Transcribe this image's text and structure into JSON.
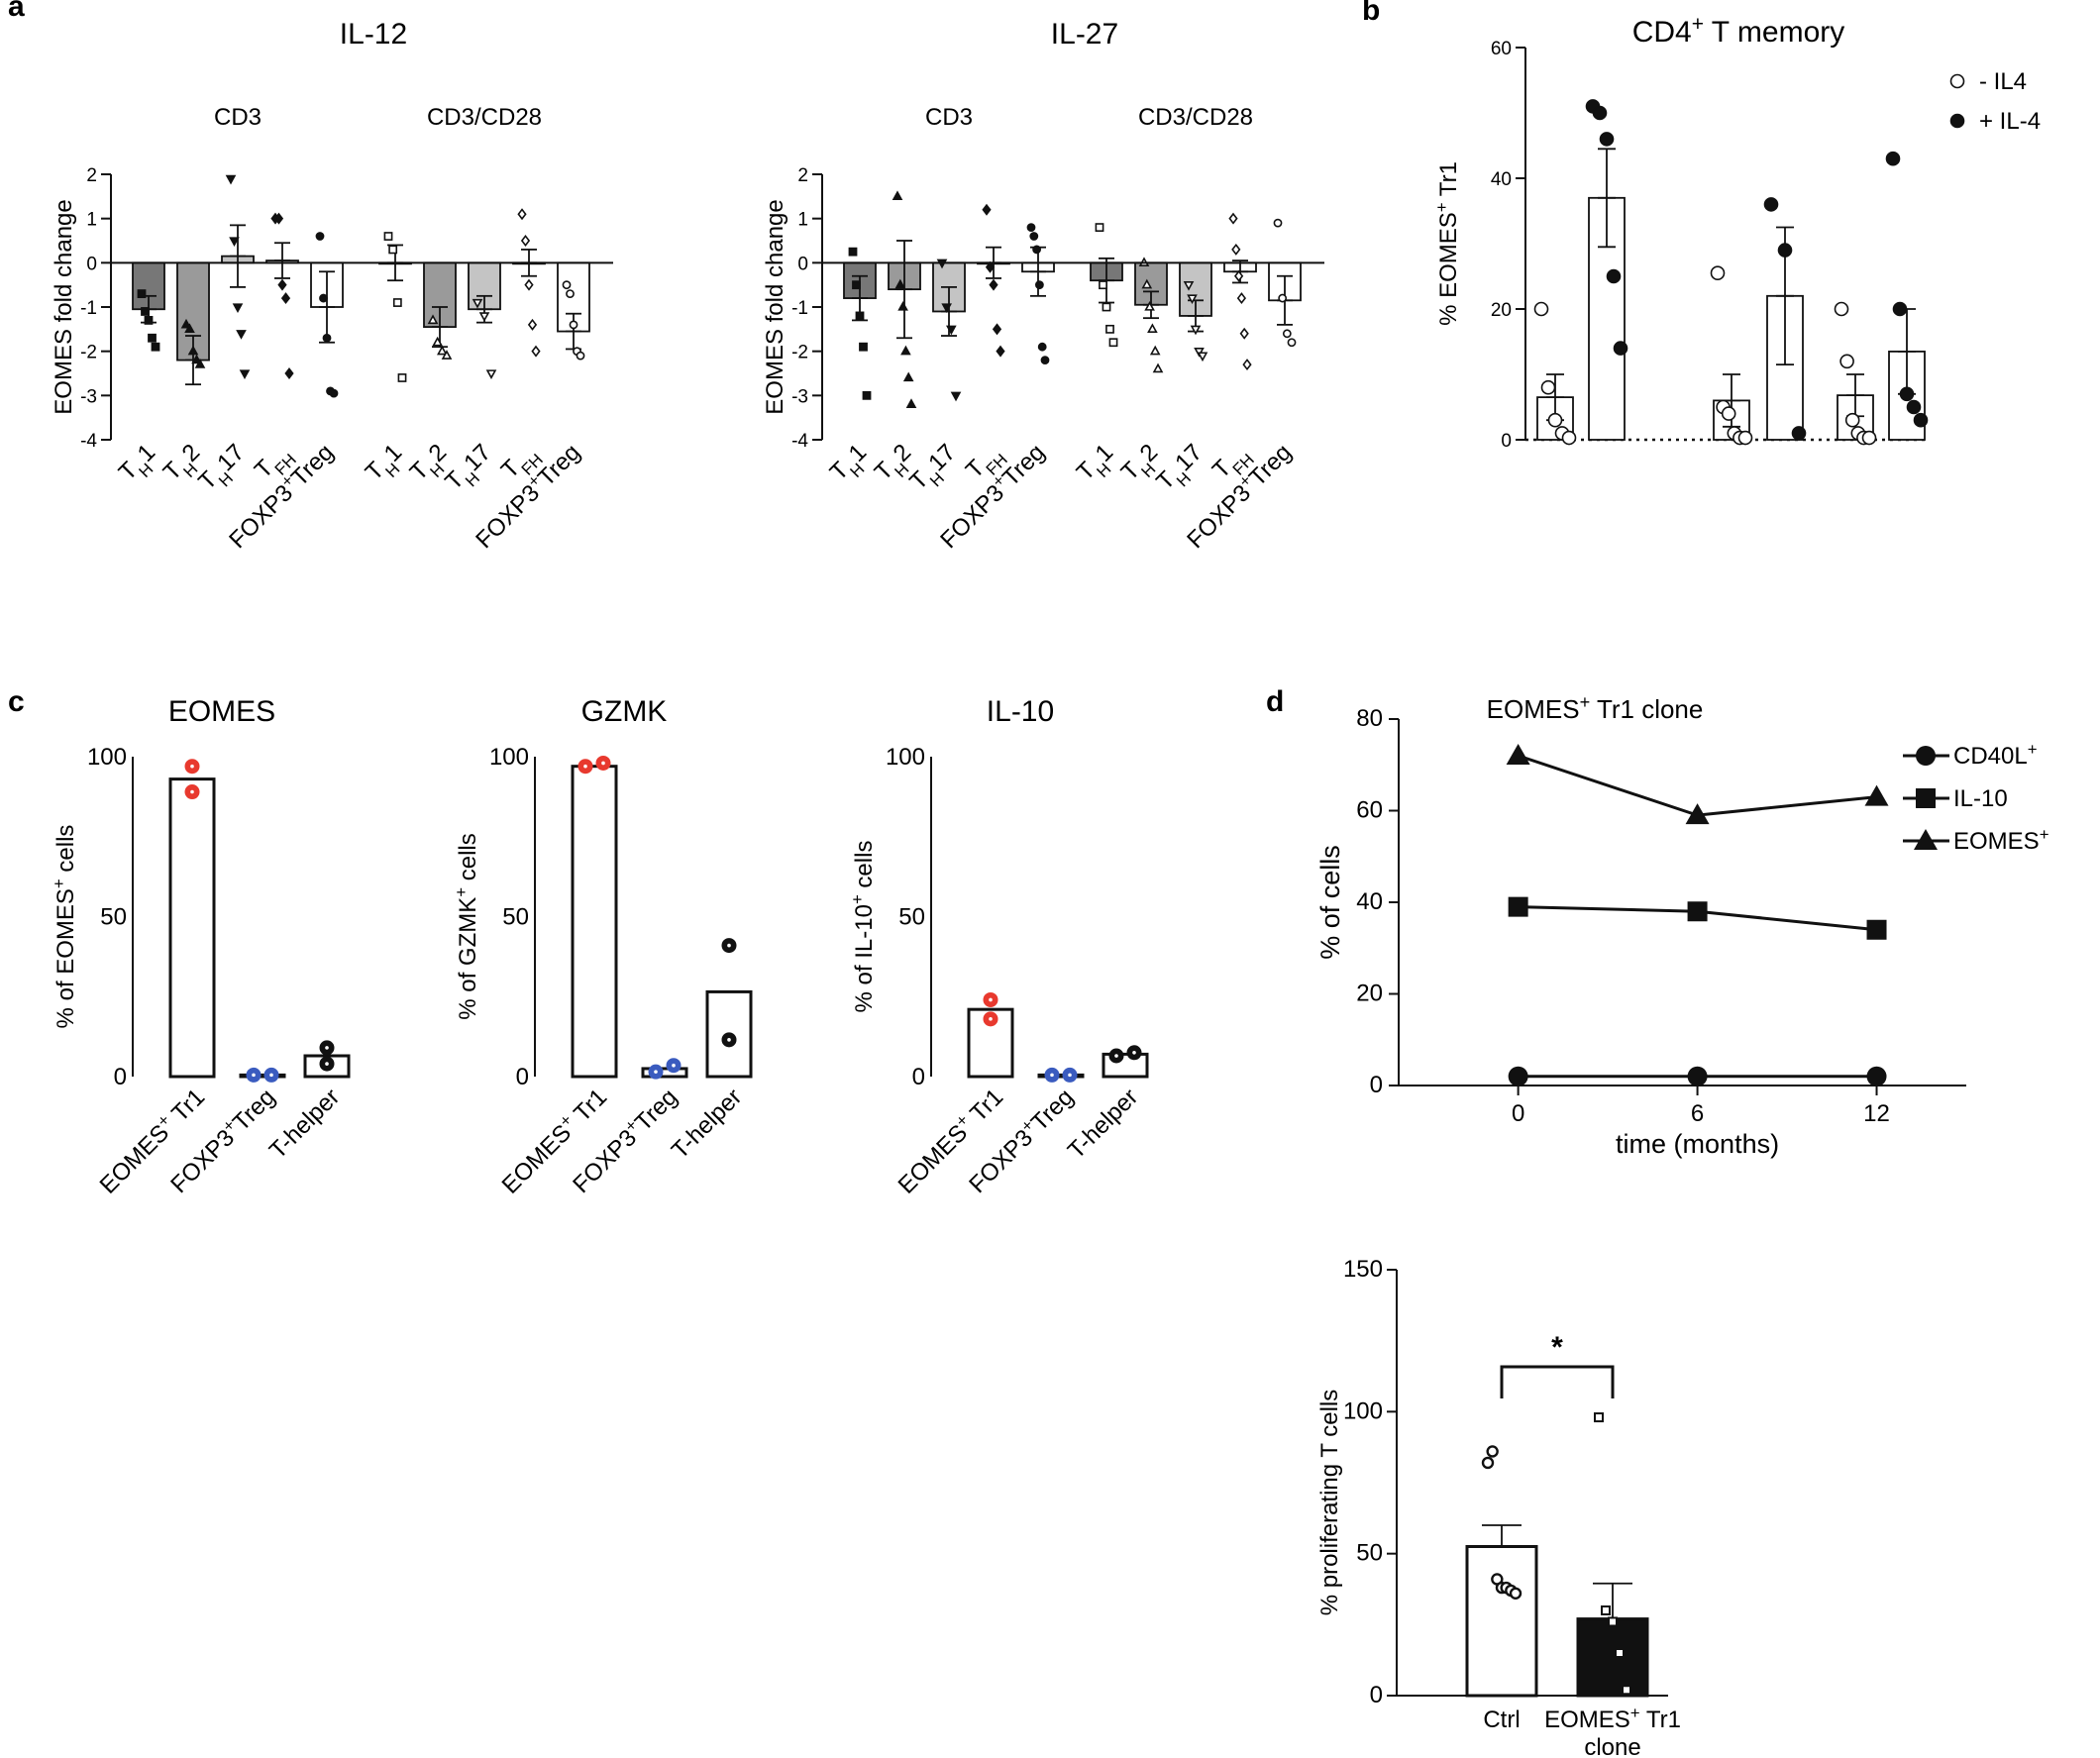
{
  "panel_labels": {
    "a": "a",
    "b": "b",
    "c": "c",
    "d": "d"
  },
  "colors": {
    "dark_grey": "#777777",
    "mid_grey": "#9a9a9a",
    "light_grey": "#c4c4c4",
    "red": "#e8392e",
    "blue": "#3a5bbf",
    "black": "#111111"
  },
  "chart_data": [
    {
      "id": "a_il12",
      "type": "bar",
      "title": "IL-12",
      "ylabel": "EOMES fold change",
      "ylim": [
        -4,
        2
      ],
      "yticks": [
        -4,
        -3,
        -2,
        -1,
        0,
        1,
        2
      ],
      "groups": [
        "CD3",
        "CD3/CD28"
      ],
      "categories": [
        "TH1",
        "TH2",
        "TH17",
        "TFH",
        "FOXP3+Treg"
      ],
      "category_labels": [
        {
          "main": "T",
          "sub": "H",
          "rest": "1"
        },
        {
          "main": "T",
          "sub": "H",
          "rest": "2"
        },
        {
          "main": "T",
          "sub": "H",
          "rest": "17"
        },
        {
          "main": "T",
          "sub": "FH",
          "rest": ""
        },
        {
          "main": "FOXP3",
          "sup": "+",
          "rest": "Treg"
        }
      ],
      "series": [
        {
          "name": "CD3",
          "values": [
            -1.05,
            -2.2,
            0.15,
            0.05,
            -1.0
          ],
          "sem": [
            0.3,
            0.55,
            0.7,
            0.4,
            0.8
          ],
          "points": [
            [
              -0.7,
              -1.1,
              -1.3,
              -1.7,
              -1.9
            ],
            [
              -1.4,
              -1.5,
              -2.0,
              -2.2,
              -2.3
            ],
            [
              1.9,
              0.5,
              -1.0,
              -1.6,
              -2.5
            ],
            [
              1.0,
              1.0,
              -0.5,
              -0.8,
              -2.5
            ],
            [
              0.6,
              -0.8,
              -1.7,
              -2.9,
              -2.95
            ]
          ]
        },
        {
          "name": "CD3/CD28",
          "values": [
            0.0,
            -1.45,
            -1.05,
            0.0,
            -1.55
          ],
          "sem": [
            0.4,
            0.45,
            0.3,
            0.3,
            0.4
          ],
          "points": [
            [
              0.6,
              0.3,
              -0.9,
              -2.6
            ],
            [
              -1.3,
              -1.8,
              -2.0,
              -2.1
            ],
            [
              -0.9,
              -1.2,
              -2.5
            ],
            [
              1.1,
              0.5,
              -0.5,
              -1.4,
              -2.0
            ],
            [
              -0.5,
              -0.7,
              -1.4,
              -2.0,
              -2.1
            ]
          ]
        }
      ]
    },
    {
      "id": "a_il27",
      "type": "bar",
      "title": "IL-27",
      "ylabel": "EOMES fold change",
      "ylim": [
        -4,
        2
      ],
      "yticks": [
        -4,
        -3,
        -2,
        -1,
        0,
        1,
        2
      ],
      "groups": [
        "CD3",
        "CD3/CD28"
      ],
      "categories": [
        "TH1",
        "TH2",
        "TH17",
        "TFH",
        "FOXP3+Treg"
      ],
      "category_labels": [
        {
          "main": "T",
          "sub": "H",
          "rest": "1"
        },
        {
          "main": "T",
          "sub": "H",
          "rest": "2"
        },
        {
          "main": "T",
          "sub": "H",
          "rest": "17"
        },
        {
          "main": "T",
          "sub": "FH",
          "rest": ""
        },
        {
          "main": "FOXP3",
          "sup": "+",
          "rest": "Treg"
        }
      ],
      "series": [
        {
          "name": "CD3",
          "values": [
            -0.8,
            -0.6,
            -1.1,
            0.0,
            -0.2
          ],
          "sem": [
            0.5,
            1.1,
            0.55,
            0.35,
            0.55
          ],
          "points": [
            [
              0.25,
              -0.5,
              -1.2,
              -1.9,
              -3.0
            ],
            [
              1.5,
              -0.5,
              -1.0,
              -2.0,
              -2.6,
              -3.2
            ],
            [
              0.0,
              -1.0,
              -1.5,
              -3.0
            ],
            [
              1.2,
              -0.1,
              -0.5,
              -1.5,
              -2.0
            ],
            [
              0.8,
              0.6,
              0.3,
              -0.5,
              -1.9,
              -2.2
            ]
          ]
        },
        {
          "name": "CD3/CD28",
          "values": [
            -0.4,
            -0.95,
            -1.2,
            -0.2,
            -0.85
          ],
          "sem": [
            0.5,
            0.3,
            0.35,
            0.25,
            0.55
          ],
          "points": [
            [
              0.8,
              -0.5,
              -1.0,
              -1.5,
              -1.8
            ],
            [
              0.0,
              -0.5,
              -1.0,
              -1.5,
              -2.0,
              -2.4
            ],
            [
              -0.5,
              -0.8,
              -1.5,
              -2.0,
              -2.1
            ],
            [
              1.0,
              0.3,
              -0.3,
              -0.8,
              -1.6,
              -2.3
            ],
            [
              0.9,
              -0.8,
              -1.6,
              -1.8
            ]
          ]
        }
      ]
    },
    {
      "id": "b",
      "type": "bar",
      "title": "CD4",
      "title_sup": "+",
      "title_rest": " T memory",
      "ylabel": "% EOMES",
      "ylabel_sup": "+",
      "ylabel_rest": " Tr1",
      "ylim": [
        0,
        60
      ],
      "yticks": [
        0,
        20,
        40,
        60
      ],
      "legend": [
        {
          "marker": "open",
          "label": "-  IL4"
        },
        {
          "marker": "filled",
          "label": "+ IL-4"
        }
      ],
      "bars": [
        {
          "condition": "- IL4",
          "value": 6.5,
          "sem": 3.5,
          "points": [
            20,
            8,
            3,
            1,
            0.3
          ]
        },
        {
          "condition": "+ IL-4",
          "value": 37,
          "sem": 7.5,
          "points": [
            51,
            50,
            46,
            25,
            14
          ]
        },
        {
          "condition": "- IL4",
          "value": 6,
          "sem": 4,
          "points": [
            25.5,
            5,
            4,
            1,
            0.3,
            0.3
          ]
        },
        {
          "condition": "+ IL-4",
          "value": 22,
          "sem": 10.5,
          "points": [
            36,
            29,
            1
          ]
        },
        {
          "condition": "- IL4",
          "value": 6.8,
          "sem": 3.2,
          "points": [
            20,
            12,
            3,
            1,
            0.3,
            0.3
          ]
        },
        {
          "condition": "+ IL-4",
          "value": 13.5,
          "sem": 6.5,
          "points": [
            43,
            20,
            7,
            5,
            3
          ]
        }
      ]
    },
    {
      "id": "c_eomes",
      "type": "bar",
      "title": "EOMES",
      "ylabel": "% of EOMES",
      "ylabel_sup": "+",
      "ylabel_rest": " cells",
      "ylim": [
        0,
        100
      ],
      "yticks": [
        0,
        50,
        100
      ],
      "categories": [
        "EOMES+ Tr1",
        "FOXP3+Treg",
        "T-helper"
      ],
      "category_labels": [
        {
          "main": "EOMES",
          "sup": "+",
          "rest": " Tr1"
        },
        {
          "main": "FOXP3",
          "sup": "+",
          "rest": "Treg"
        },
        {
          "main": "T-helper",
          "rest": ""
        }
      ],
      "values": [
        93,
        0.5,
        6.5
      ],
      "points": [
        [
          97,
          89
        ],
        [
          0.5,
          0.5
        ],
        [
          9,
          4
        ]
      ],
      "dot_colors": [
        "red",
        "blue",
        "black"
      ]
    },
    {
      "id": "c_gzmk",
      "type": "bar",
      "title": "GZMK",
      "ylabel": "% of GZMK",
      "ylabel_sup": "+",
      "ylabel_rest": " cells",
      "ylim": [
        0,
        100
      ],
      "yticks": [
        0,
        50,
        100
      ],
      "categories": [
        "EOMES+ Tr1",
        "FOXP3+Treg",
        "T-helper"
      ],
      "category_labels": [
        {
          "main": "EOMES",
          "sup": "+",
          "rest": " Tr1"
        },
        {
          "main": "FOXP3",
          "sup": "+",
          "rest": "Treg"
        },
        {
          "main": "T-helper",
          "rest": ""
        }
      ],
      "values": [
        97,
        2.5,
        26.5
      ],
      "points": [
        [
          97,
          98
        ],
        [
          1.5,
          3.5
        ],
        [
          41,
          11.5
        ]
      ],
      "dot_colors": [
        "red",
        "blue",
        "black"
      ]
    },
    {
      "id": "c_il10",
      "type": "bar",
      "title": "IL-10",
      "ylabel": "% of IL-10",
      "ylabel_sup": "+",
      "ylabel_rest": " cells",
      "ylim": [
        0,
        100
      ],
      "yticks": [
        0,
        50,
        100
      ],
      "categories": [
        "EOMES+ Tr1",
        "FOXP3+Treg",
        "T-helper"
      ],
      "category_labels": [
        {
          "main": "EOMES",
          "sup": "+",
          "rest": " Tr1"
        },
        {
          "main": "FOXP3",
          "sup": "+",
          "rest": "Treg"
        },
        {
          "main": "T-helper",
          "rest": ""
        }
      ],
      "values": [
        21,
        0.5,
        7
      ],
      "points": [
        [
          24,
          18
        ],
        [
          0.5,
          0.5
        ],
        [
          6.5,
          7.5
        ]
      ],
      "dot_colors": [
        "red",
        "blue",
        "black"
      ]
    },
    {
      "id": "d_line",
      "type": "line",
      "title": "EOMES",
      "title_sup": "+",
      "title_rest": " Tr1 clone",
      "xlabel": "time (months)",
      "ylabel": "% of cells",
      "x": [
        0,
        6,
        12
      ],
      "xlim": [
        -4,
        15
      ],
      "ylim": [
        0,
        80
      ],
      "yticks": [
        0,
        20,
        40,
        60,
        80
      ],
      "xticks": [
        0,
        6,
        12
      ],
      "series": [
        {
          "name": "CD40L",
          "name_sup": "+",
          "marker": "circle",
          "values": [
            2,
            2,
            2
          ]
        },
        {
          "name": "IL-10",
          "name_sup": "",
          "marker": "square",
          "values": [
            39,
            38,
            34
          ]
        },
        {
          "name": "EOMES",
          "name_sup": "+",
          "marker": "triangle",
          "values": [
            72,
            59,
            63
          ]
        }
      ]
    },
    {
      "id": "d_bar",
      "type": "bar",
      "ylabel": "% proliferating  T cells",
      "ylim": [
        0,
        150
      ],
      "yticks": [
        0,
        50,
        100,
        150
      ],
      "categories": [
        "Ctrl",
        "EOMES+ Tr1 clone"
      ],
      "category_labels": [
        {
          "main": "Ctrl",
          "rest": ""
        },
        {
          "main": "EOMES",
          "sup": "+",
          "rest": " Tr1",
          "line2": "clone"
        }
      ],
      "values": [
        52.5,
        27
      ],
      "sem": [
        7.5,
        12.5
      ],
      "points": [
        [
          82,
          86,
          41,
          38,
          38,
          37,
          36
        ],
        [
          98,
          30,
          26,
          15,
          2
        ]
      ],
      "significance": "*"
    }
  ]
}
